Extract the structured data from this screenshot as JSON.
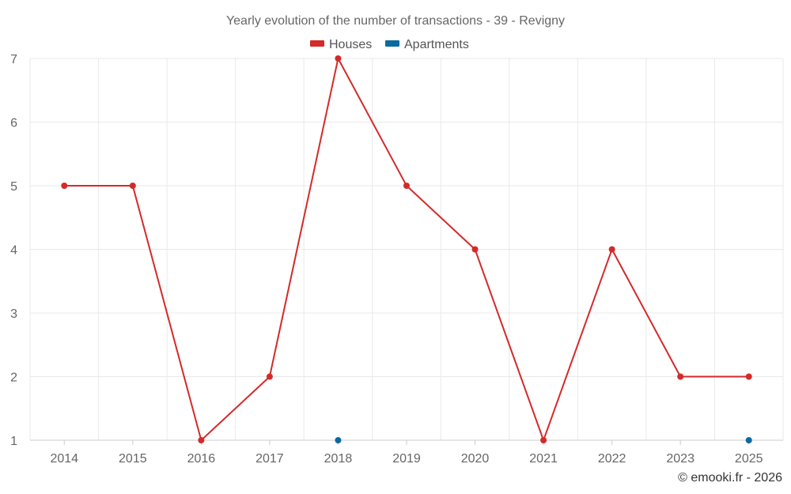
{
  "chart_data": {
    "type": "line",
    "title": "Yearly evolution of the number of transactions - 39 - Revigny",
    "xlabel": "",
    "ylabel": "",
    "categories": [
      "2014",
      "2015",
      "2016",
      "2017",
      "2018",
      "2019",
      "2020",
      "2021",
      "2022",
      "2023",
      "2025"
    ],
    "ylim": [
      1,
      7
    ],
    "yticks": [
      1,
      2,
      3,
      4,
      5,
      6,
      7
    ],
    "grid": true,
    "legend_position": "top-center",
    "series": [
      {
        "name": "Houses",
        "color": "#d42a2a",
        "values": [
          5,
          5,
          1,
          2,
          7,
          5,
          4,
          1,
          4,
          2,
          2
        ]
      },
      {
        "name": "Apartments",
        "color": "#0b6aa0",
        "values": [
          null,
          null,
          null,
          null,
          1,
          null,
          null,
          null,
          null,
          null,
          1
        ]
      }
    ]
  },
  "credit": "© emooki.fr - 2026"
}
